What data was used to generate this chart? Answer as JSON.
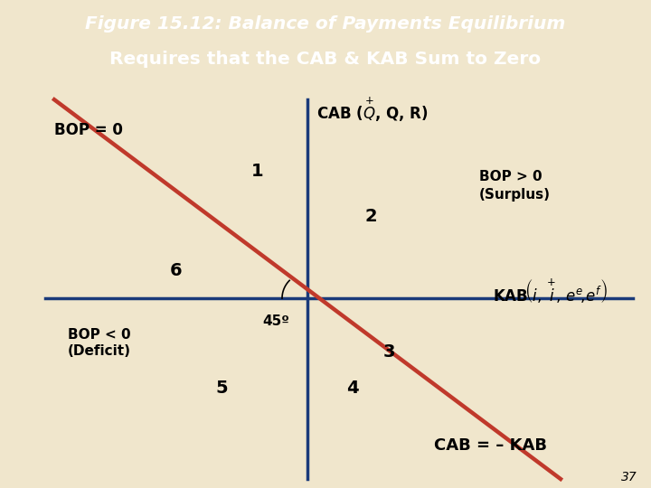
{
  "bg_color": "#f0e6cc",
  "header_bg": "#555555",
  "blue_bar_color": "#2a4a7a",
  "line_color": "#c0392b",
  "axis_color": "#1a3a7a",
  "page_number": "37",
  "title_line1": "Figure 15.12: Balance of Payments Equilibrium",
  "title_line2": "Requires that the CAB & KAB Sum to Zero",
  "bop_zero_label": "BOP = 0",
  "bop_pos_label": "BOP > 0",
  "bop_pos_label2": "(Surplus)",
  "bop_neg_label": "BOP < 0",
  "bop_neg_label2": "(Deficit)",
  "cab_eq_label": "CAB = – KAB",
  "angle_label": "45º"
}
